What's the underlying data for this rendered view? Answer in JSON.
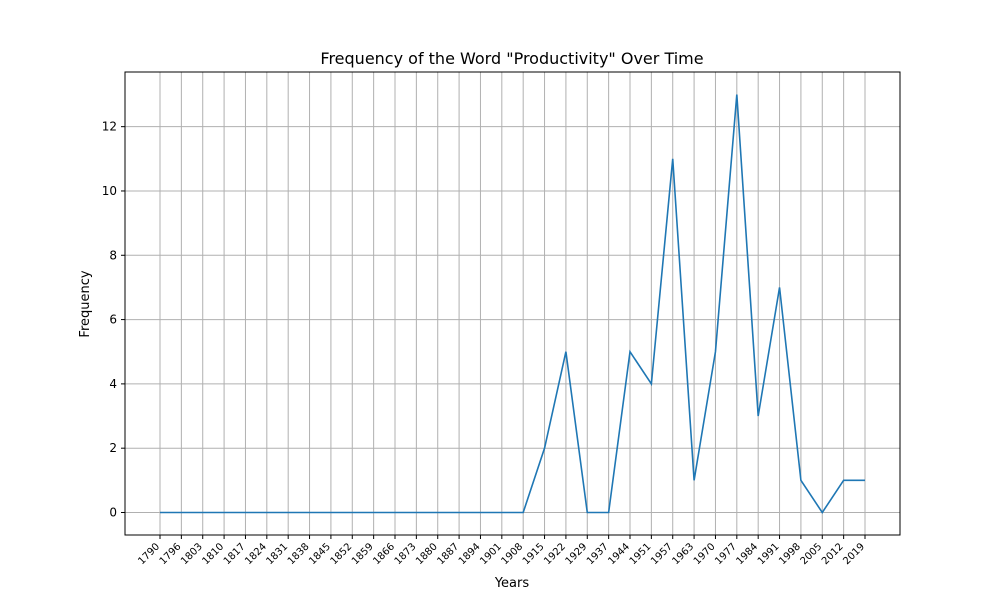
{
  "chart_data": {
    "type": "line",
    "title": "Frequency of the Word \"Productivity\" Over Time",
    "xlabel": "Years",
    "ylabel": "Frequency",
    "x": [
      "1790",
      "1796",
      "1803",
      "1810",
      "1817",
      "1824",
      "1831",
      "1838",
      "1845",
      "1852",
      "1859",
      "1866",
      "1873",
      "1880",
      "1887",
      "1894",
      "1901",
      "1908",
      "1915",
      "1922",
      "1929",
      "1937",
      "1944",
      "1951",
      "1957",
      "1963",
      "1970",
      "1977",
      "1984",
      "1991",
      "1998",
      "2005",
      "2012",
      "2019"
    ],
    "series": [
      {
        "values": [
          0,
          0,
          0,
          0,
          0,
          0,
          0,
          0,
          0,
          0,
          0,
          0,
          0,
          0,
          0,
          0,
          0,
          0,
          2,
          5,
          0,
          0,
          5,
          4,
          11,
          1,
          5,
          13,
          3,
          7,
          1,
          0,
          1,
          1
        ]
      }
    ],
    "ylim": [
      -0.7,
      13.7
    ],
    "yticks": [
      0,
      2,
      4,
      6,
      8,
      10,
      12
    ],
    "grid": true,
    "line_color": "#1f77b4"
  }
}
